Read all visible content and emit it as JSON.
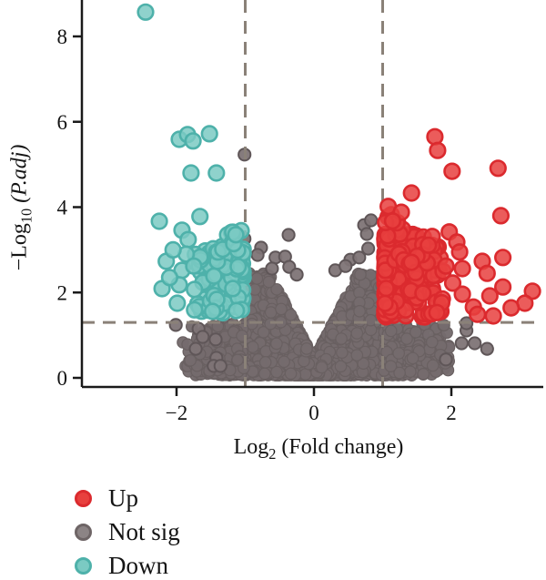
{
  "figure": {
    "background": "#ffffff"
  },
  "axes": {
    "x": {
      "label_prefix": "Log",
      "label_sub": "2",
      "label_rest": " (Fold change)",
      "ticks": [
        -2,
        0,
        2
      ],
      "range": [
        -3.35,
        3.35
      ]
    },
    "y": {
      "label_prefix": "−Log",
      "label_sub": "10",
      "label_space": " ",
      "label_italic": "(P.adj)",
      "ticks": [
        0,
        2,
        4,
        6,
        8
      ],
      "range": [
        -0.2,
        8.85
      ]
    }
  },
  "thresholds": {
    "x": [
      -1,
      1
    ],
    "y": 1.3,
    "line_color": "#8a8178"
  },
  "legend": {
    "items": [
      {
        "label": "Up",
        "fill": "#e8403e",
        "stroke": "#db2a2e"
      },
      {
        "label": "Not sig",
        "fill": "#8c8485",
        "stroke": "#6e6566"
      },
      {
        "label": "Down",
        "fill": "#7bcac3",
        "stroke": "#4eb1aa"
      }
    ]
  },
  "chart_data": {
    "type": "scatter",
    "subtype": "volcano",
    "title": "",
    "xlabel": "Log2 (Fold change)",
    "ylabel": "-Log10 (P.adj)",
    "xlim": [
      -3.35,
      3.35
    ],
    "ylim": [
      -0.2,
      8.85
    ],
    "x_ticks": [
      -2,
      0,
      2
    ],
    "y_ticks": [
      0,
      2,
      4,
      6,
      8
    ],
    "grid": false,
    "legend_position": "bottom-left",
    "threshold_lines": {
      "vertical_x": [
        -1,
        1
      ],
      "horizontal_y": 1.3,
      "style": "dashed"
    },
    "style": {
      "up_fill": "#e8403e",
      "up_stroke": "#db2a2e",
      "down_fill": "#7bcac3",
      "down_stroke": "#4eb1aa",
      "gray_fill": "#7e7476",
      "gray_stroke": "#5f5658",
      "cloud_fill": "#756b6d",
      "cloud_stroke": "#696061",
      "point_radius_px": 8.3,
      "cloud_radius_px": 6.2,
      "gray_radius_px": 6.6
    },
    "series": [
      {
        "name": "Up",
        "color": "#e8403e",
        "points": [
          [
            1.76,
            5.65
          ],
          [
            1.8,
            5.33
          ],
          [
            2.01,
            4.84
          ],
          [
            2.68,
            4.91
          ],
          [
            1.42,
            4.33
          ],
          [
            2.72,
            3.8
          ],
          [
            2.16,
            2.56
          ],
          [
            2.45,
            2.73
          ],
          [
            2.52,
            2.45
          ],
          [
            2.75,
            2.82
          ],
          [
            2.75,
            2.13
          ],
          [
            3.18,
            2.03
          ],
          [
            3.07,
            1.75
          ],
          [
            2.87,
            1.64
          ],
          [
            2.61,
            1.45
          ],
          [
            2.16,
            1.96
          ],
          [
            2.32,
            1.66
          ],
          [
            2.38,
            1.49
          ],
          [
            1.97,
            3.42
          ],
          [
            2.08,
            3.18
          ],
          [
            2.12,
            2.95
          ],
          [
            1.92,
            2.62
          ],
          [
            2.02,
            2.22
          ],
          [
            1.86,
            1.76
          ],
          [
            1.79,
            1.53
          ],
          [
            2.56,
            1.92
          ]
        ]
      },
      {
        "name": "Down",
        "color": "#7bcac3",
        "points": [
          [
            -2.45,
            8.57
          ],
          [
            -1.96,
            5.59
          ],
          [
            -1.84,
            5.7
          ],
          [
            -1.76,
            5.55
          ],
          [
            -1.52,
            5.72
          ],
          [
            -1.79,
            4.8
          ],
          [
            -1.42,
            4.8
          ],
          [
            -2.25,
            3.67
          ],
          [
            -1.66,
            3.78
          ],
          [
            -1.92,
            3.46
          ],
          [
            -1.83,
            3.24
          ],
          [
            -2.15,
            2.73
          ],
          [
            -1.92,
            2.52
          ],
          [
            -2.21,
            2.09
          ],
          [
            -1.96,
            2.18
          ],
          [
            -1.99,
            1.75
          ],
          [
            -2.1,
            2.35
          ],
          [
            -1.86,
            2.9
          ],
          [
            -1.75,
            2.62
          ],
          [
            -2.05,
            3.0
          ]
        ]
      },
      {
        "name": "Not sig",
        "color": "#756b6d",
        "points": [
          [
            -1.01,
            5.23
          ],
          [
            -1.01,
            3.26
          ],
          [
            -0.77,
            3.05
          ],
          [
            -0.82,
            2.88
          ],
          [
            -0.37,
            3.35
          ],
          [
            -0.56,
            2.82
          ],
          [
            -0.42,
            2.84
          ],
          [
            -0.36,
            2.6
          ],
          [
            0.73,
            3.58
          ],
          [
            0.83,
            3.69
          ],
          [
            0.77,
            3.37
          ],
          [
            0.53,
            2.77
          ],
          [
            0.66,
            2.82
          ],
          [
            0.79,
            3.03
          ],
          [
            -2.01,
            1.24
          ],
          [
            -1.68,
            1.15
          ],
          [
            -1.62,
            0.96
          ],
          [
            -1.72,
            0.68
          ],
          [
            -1.43,
            0.9
          ],
          [
            -1.42,
            0.47
          ],
          [
            -1.46,
            0.28
          ],
          [
            -1.36,
            0.28
          ],
          [
            2.22,
            1.11
          ],
          [
            2.15,
            0.81
          ],
          [
            2.34,
            0.81
          ],
          [
            2.52,
            0.68
          ],
          [
            1.92,
            0.43
          ],
          [
            2.22,
            1.28
          ],
          [
            -0.25,
            2.42
          ],
          [
            0.31,
            2.52
          ],
          [
            -0.61,
            2.56
          ],
          [
            0.46,
            2.62
          ]
        ]
      }
    ],
    "generated": {
      "cloud": {
        "class": "not_sig",
        "seed": 42,
        "count": 2900,
        "x_spread": 2.25,
        "cap_base": 0.45,
        "cap_slope": 3.1,
        "cap_max": 2.45,
        "cap_outer": 1.27,
        "outer_limit": 1.95,
        "outer_cap_far": 0.8,
        "y_min": 0.06,
        "y_pow": 1.55
      },
      "clusters": [
        {
          "class": "up",
          "seed": 7,
          "count": 215,
          "x_base": 1.03,
          "x_span": 0.85,
          "x_pow": 2.2,
          "y_base": 1.42,
          "y_span": 1.95,
          "y_pow": 0.95
        },
        {
          "class": "up",
          "seed": 8,
          "count": 14,
          "x_base": 1.03,
          "x_span": 0.32,
          "x_pow": 1.0,
          "y_base": 3.3,
          "y_span": 0.75,
          "y_pow": 1.0
        },
        {
          "class": "down",
          "seed": 9,
          "count": 125,
          "x_base": -1.03,
          "x_span": -0.72,
          "x_pow": 2.0,
          "y_base": 1.52,
          "y_span": 1.58,
          "y_pow": 0.95
        },
        {
          "class": "down",
          "seed": 10,
          "count": 9,
          "x_base": -1.05,
          "x_span": -0.3,
          "x_pow": 1.0,
          "y_base": 2.95,
          "y_span": 0.5,
          "y_pow": 1.0
        },
        {
          "class": "not_sig",
          "seed": 11,
          "count": 130,
          "x_base": 1.02,
          "x_span": 0.95,
          "x_pow": 1.1,
          "y_base": 0.08,
          "y_span": 1.17,
          "y_pow": 1.25
        },
        {
          "class": "not_sig",
          "seed": 12,
          "count": 110,
          "x_base": -1.02,
          "x_span": -0.85,
          "x_pow": 1.1,
          "y_base": 0.08,
          "y_span": 1.17,
          "y_pow": 1.25
        }
      ]
    }
  }
}
